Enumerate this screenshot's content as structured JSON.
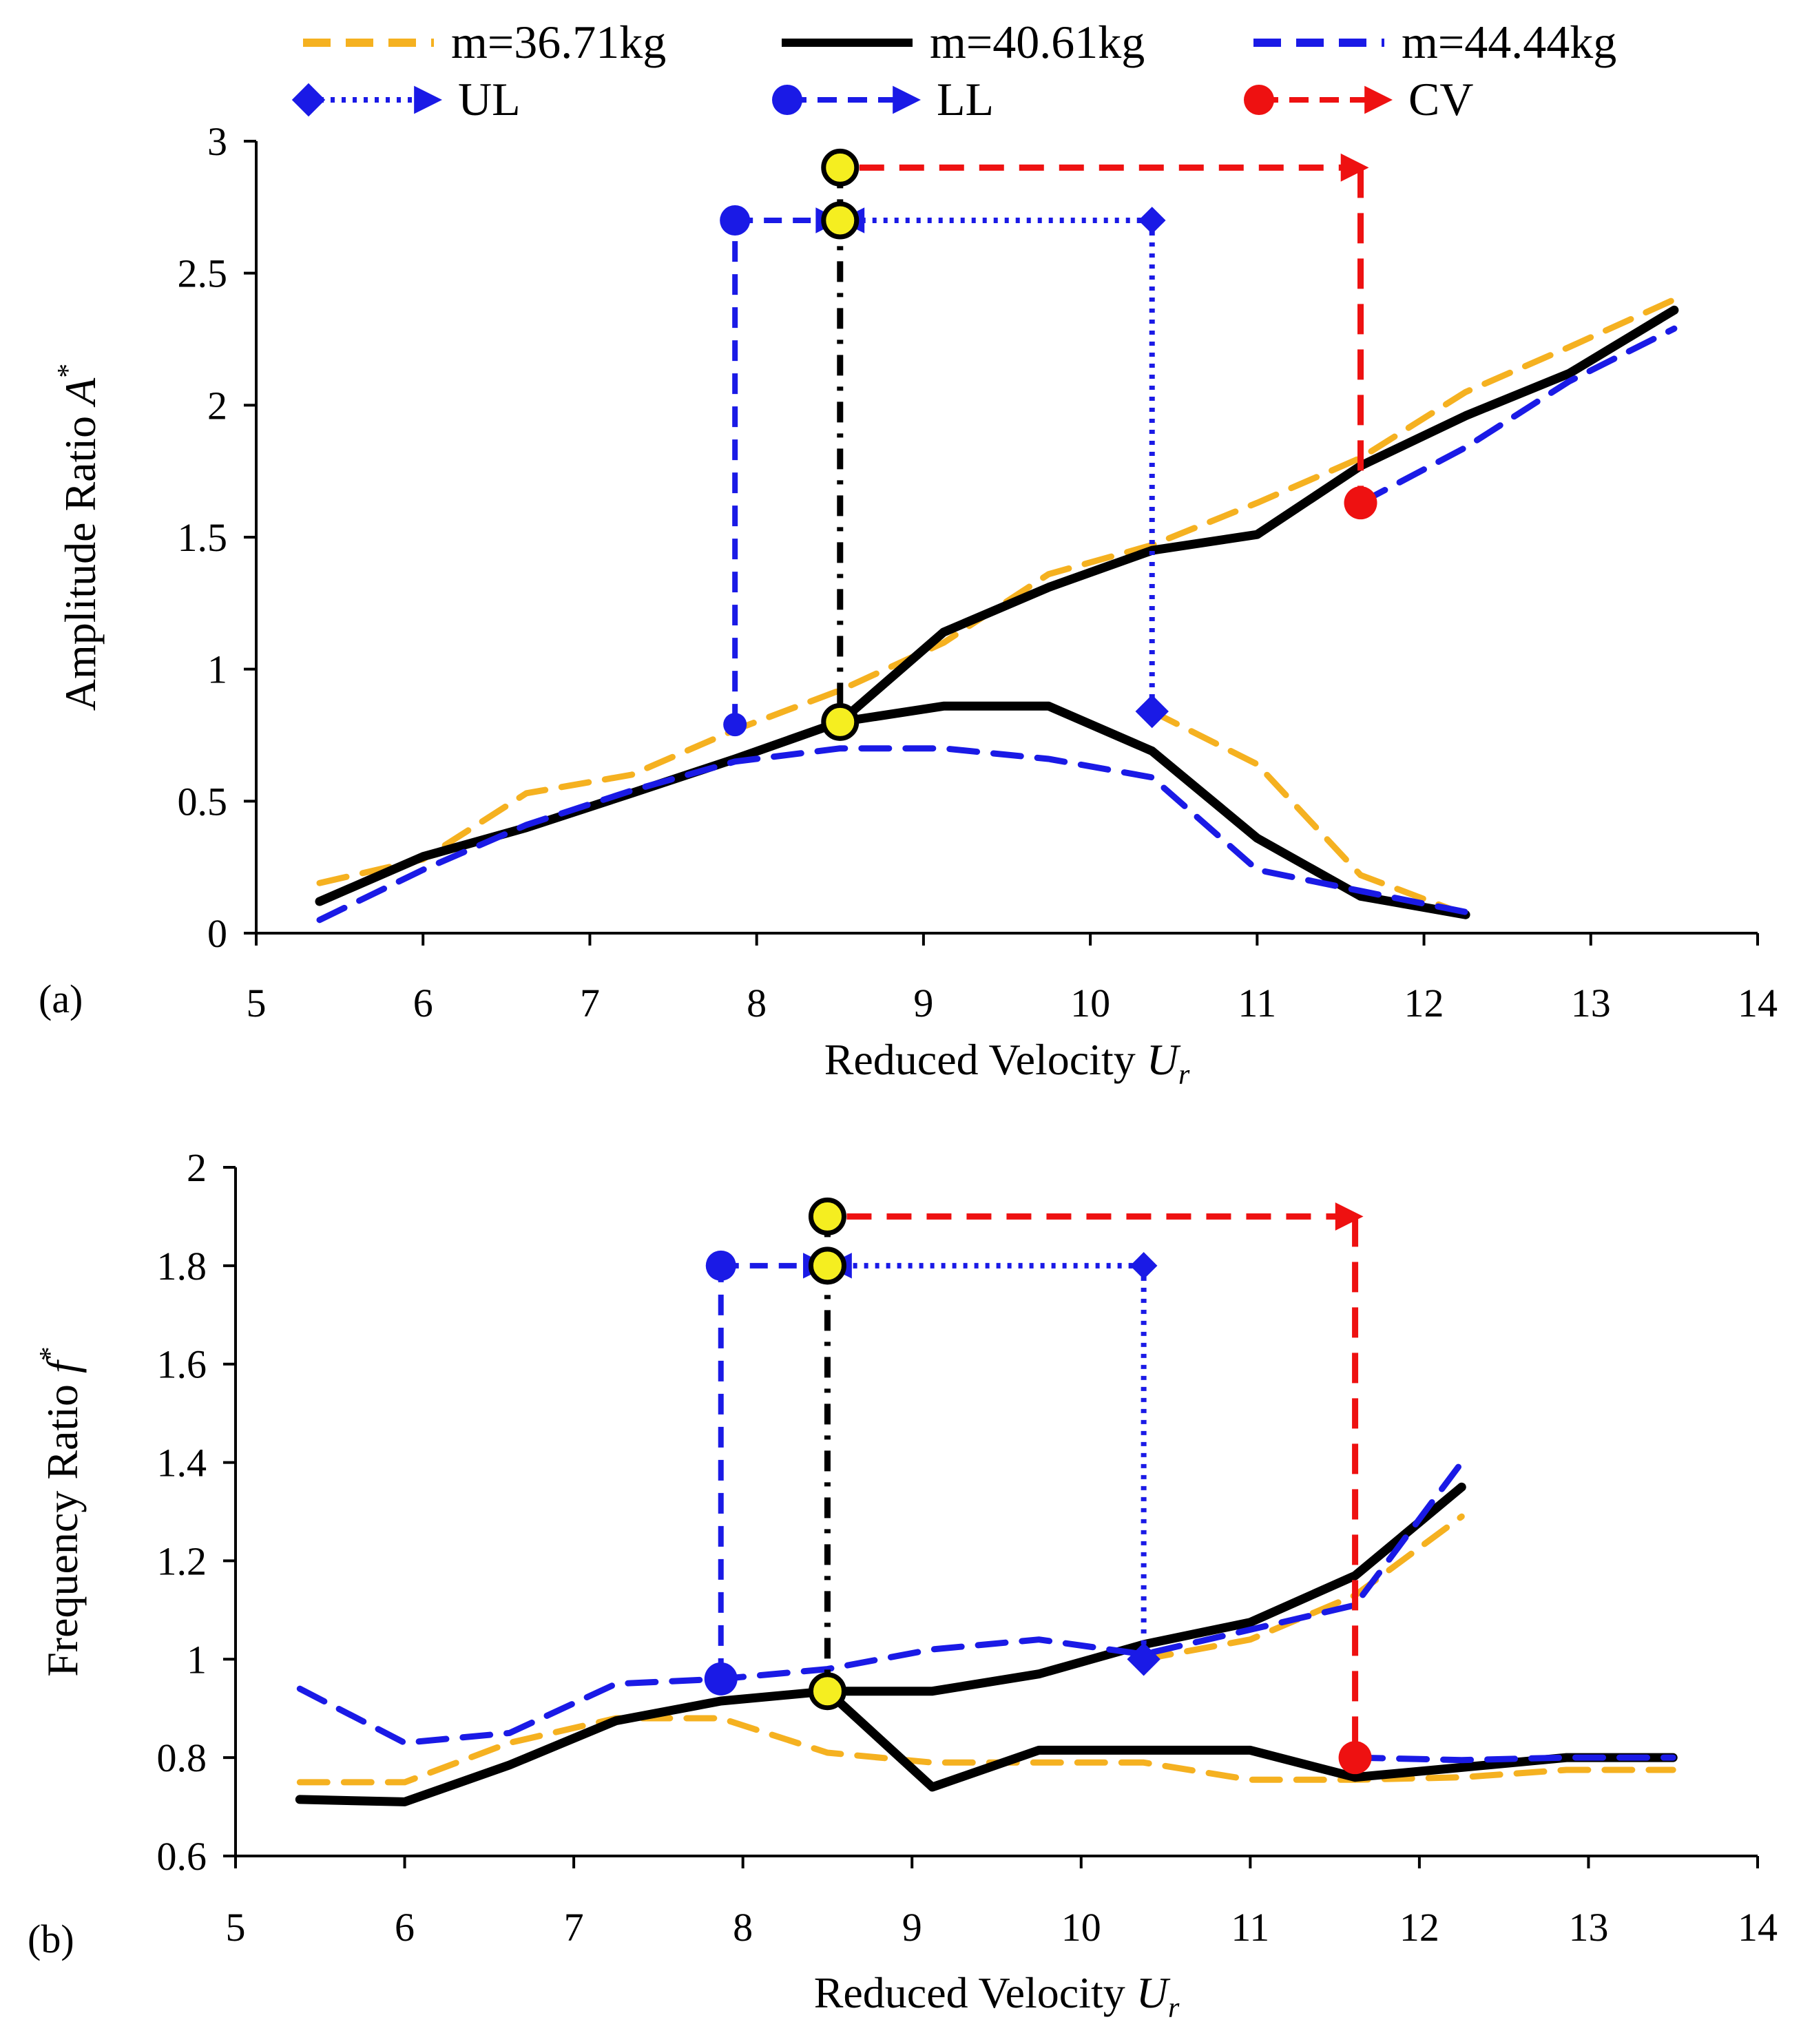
{
  "legend": {
    "row1": [
      {
        "label": "m=36.71kg",
        "color": "#F5B120",
        "dash": "dashed"
      },
      {
        "label": "m=40.61kg",
        "color": "#000000",
        "dash": "solid"
      },
      {
        "label": "m=44.44kg",
        "color": "#1A1AE6",
        "dash": "dashed"
      }
    ],
    "row2": [
      {
        "label": "UL",
        "color": "#1A1AE6",
        "marker": "diamond",
        "dash": "dotted"
      },
      {
        "label": "LL",
        "color": "#1A1AE6",
        "marker": "circle",
        "dash": "dashed"
      },
      {
        "label": "CV",
        "color": "#EE1111",
        "marker": "circle",
        "dash": "dashed"
      }
    ]
  },
  "colors": {
    "orange": "#F5B120",
    "black": "#000000",
    "blue": "#1A1AE6",
    "red": "#EE1111",
    "yellow": "#F5EE20"
  },
  "chart_data": [
    {
      "type": "line",
      "panel_label": "(a)",
      "xlabel": "Reduced Velocity",
      "xlabel_symbol": "U",
      "xlabel_sub": "r",
      "ylabel": "Amplitude Ratio",
      "ylabel_symbol": "A",
      "ylabel_sup": "*",
      "xlim": [
        5,
        14
      ],
      "ylim": [
        0,
        3
      ],
      "xticks": [
        5,
        6,
        7,
        8,
        9,
        10,
        11,
        12,
        13,
        14
      ],
      "xtick_labels": [
        "5",
        "6",
        "7",
        "8",
        "9",
        "10",
        "11",
        "12",
        "13",
        "14"
      ],
      "yticks": [
        0,
        0.5,
        1,
        1.5,
        2,
        2.5,
        3
      ],
      "ytick_labels": [
        "0",
        "0.5",
        "1",
        "1.5",
        "2",
        "2.5",
        "3"
      ],
      "series": [
        {
          "name": "m=36.71kg",
          "color": "#F5B120",
          "dash": "dashed",
          "segments": [
            {
              "x": [
                5.38,
                6.0,
                6.62,
                7.25,
                7.87,
                8.5,
                9.12,
                9.75,
                10.37,
                11.0,
                11.62,
                12.25,
                12.87,
                13.5
              ],
              "y": [
                0.19,
                0.28,
                0.53,
                0.6,
                0.77,
                0.92,
                1.1,
                1.36,
                1.47,
                1.63,
                1.8,
                2.05,
                2.22,
                2.4
              ]
            },
            {
              "x": [
                10.37,
                11.0,
                11.62,
                12.25
              ],
              "y": [
                0.84,
                0.64,
                0.22,
                0.07
              ]
            }
          ]
        },
        {
          "name": "m=40.61kg",
          "color": "#000000",
          "dash": "solid",
          "segments": [
            {
              "x": [
                5.38,
                6.0,
                6.62,
                7.25,
                7.87,
                8.5,
                9.12,
                9.75,
                10.37,
                11.0,
                11.62,
                12.25,
                12.87,
                13.5
              ],
              "y": [
                0.12,
                0.29,
                0.4,
                0.53,
                0.66,
                0.8,
                1.14,
                1.31,
                1.45,
                1.51,
                1.77,
                1.96,
                2.12,
                2.36
              ]
            },
            {
              "x": [
                8.5,
                9.12,
                9.75,
                10.37,
                11.0,
                11.62,
                12.25
              ],
              "y": [
                0.8,
                0.86,
                0.86,
                0.69,
                0.36,
                0.14,
                0.07
              ]
            }
          ]
        },
        {
          "name": "m=44.44kg",
          "color": "#1A1AE6",
          "dash": "dashed",
          "segments": [
            {
              "x": [
                5.38,
                6.0,
                6.62,
                7.25,
                7.87,
                8.5,
                9.12,
                9.75,
                10.37,
                11.0,
                11.62,
                12.25
              ],
              "y": [
                0.05,
                0.24,
                0.41,
                0.54,
                0.65,
                0.7,
                0.7,
                0.66,
                0.59,
                0.24,
                0.16,
                0.08
              ]
            },
            {
              "x": [
                11.62,
                12.25,
                12.87,
                13.5
              ],
              "y": [
                1.63,
                1.84,
                2.09,
                2.29
              ]
            }
          ]
        }
      ],
      "markers": {
        "UL": {
          "x": 10.37,
          "y_low": 0.84,
          "y_high": 2.7,
          "arrow_to_x": 8.5
        },
        "LL": {
          "x": 7.87,
          "y_low": 0.79,
          "y_high": 2.7,
          "arrow_to_x": 8.5
        },
        "CV": {
          "x": 11.62,
          "y_low": 1.63,
          "y_high": 2.9,
          "from_x": 8.5
        },
        "critical": {
          "x": 8.5,
          "y_points": [
            0.8,
            2.7,
            2.9
          ]
        }
      }
    },
    {
      "type": "line",
      "panel_label": "(b)",
      "xlabel": "Reduced Velocity",
      "xlabel_symbol": "U",
      "xlabel_sub": "r",
      "ylabel": "Frequency Ratio",
      "ylabel_symbol": "f",
      "ylabel_sup": "*",
      "xlim": [
        5,
        14
      ],
      "ylim": [
        0.6,
        2
      ],
      "xticks": [
        5,
        6,
        7,
        8,
        9,
        10,
        11,
        12,
        13,
        14
      ],
      "xtick_labels": [
        "5",
        "6",
        "7",
        "8",
        "9",
        "10",
        "11",
        "12",
        "13",
        "14"
      ],
      "yticks": [
        0.6,
        0.8,
        1,
        1.2,
        1.4,
        1.6,
        1.8,
        2
      ],
      "ytick_labels": [
        "0.6",
        "0.8",
        "1",
        "1.2",
        "1.4",
        "1.6",
        "1.8",
        "2"
      ],
      "series": [
        {
          "name": "m=36.71kg",
          "color": "#F5B120",
          "dash": "dashed",
          "segments": [
            {
              "x": [
                5.38,
                6.0,
                6.62,
                7.25,
                7.87,
                8.5,
                9.12,
                9.75,
                10.37,
                11.0,
                11.62,
                12.25,
                12.87,
                13.5
              ],
              "y": [
                0.75,
                0.75,
                0.83,
                0.88,
                0.88,
                0.81,
                0.79,
                0.79,
                0.79,
                0.755,
                0.755,
                0.76,
                0.775,
                0.775
              ]
            },
            {
              "x": [
                10.37,
                11.0,
                11.62,
                12.25
              ],
              "y": [
                1.0,
                1.04,
                1.13,
                1.29
              ]
            }
          ]
        },
        {
          "name": "m=40.61kg",
          "color": "#000000",
          "dash": "solid",
          "segments": [
            {
              "x": [
                5.38,
                6.0,
                6.62,
                7.25,
                7.87,
                8.5,
                9.12,
                9.75,
                10.37,
                11.0,
                11.62,
                12.25,
                12.87,
                13.5
              ],
              "y": [
                0.715,
                0.71,
                0.785,
                0.875,
                0.915,
                0.935,
                0.74,
                0.815,
                0.815,
                0.815,
                0.76,
                0.78,
                0.8,
                0.8
              ]
            },
            {
              "x": [
                8.5,
                9.12,
                9.75,
                10.37,
                11.0,
                11.62,
                12.25
              ],
              "y": [
                0.935,
                0.935,
                0.97,
                1.03,
                1.075,
                1.17,
                1.35
              ]
            }
          ]
        },
        {
          "name": "m=44.44kg",
          "color": "#1A1AE6",
          "dash": "dashed",
          "segments": [
            {
              "x": [
                5.38,
                6.0,
                6.62,
                7.25,
                7.87,
                8.5,
                9.12,
                9.75,
                10.37,
                11.0,
                11.62,
                12.25
              ],
              "y": [
                0.94,
                0.83,
                0.85,
                0.95,
                0.96,
                0.98,
                1.02,
                1.04,
                1.01,
                1.06,
                1.11,
                1.4
              ]
            },
            {
              "x": [
                11.62,
                12.25,
                12.87,
                13.5
              ],
              "y": [
                0.8,
                0.795,
                0.8,
                0.8
              ]
            }
          ]
        }
      ],
      "markers": {
        "UL": {
          "x": 10.37,
          "y_low": 1.0,
          "y_high": 1.8,
          "arrow_to_x": 8.5
        },
        "LL": {
          "x": 7.87,
          "y_low": 0.96,
          "y_high": 1.8,
          "arrow_to_x": 8.5
        },
        "CV": {
          "x": 11.62,
          "y_low": 0.8,
          "y_high": 1.9,
          "from_x": 8.5
        },
        "critical": {
          "x": 8.5,
          "y_points": [
            0.935,
            1.8,
            1.9
          ]
        }
      }
    }
  ]
}
